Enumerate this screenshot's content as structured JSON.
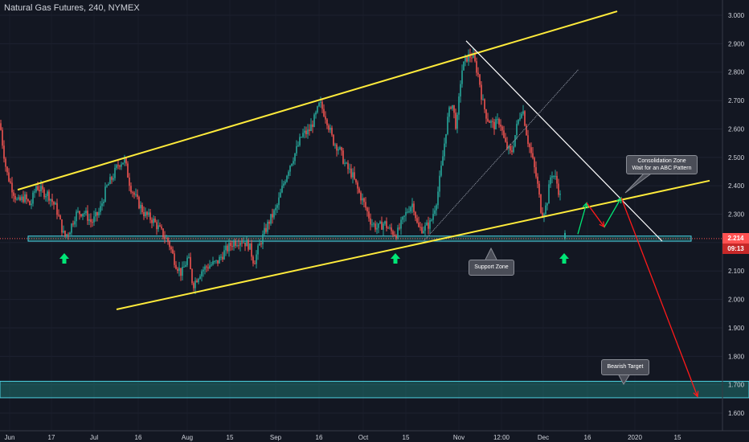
{
  "title": "Natural Gas Futures, 240, NYMEX",
  "price_labels": {
    "last_price": "2.214",
    "countdown": "09:13"
  },
  "callouts": {
    "consolidation_line1": "Consolidation Zone",
    "consolidation_line2": "Wait for an ABC Pattern",
    "support": "Support Zone",
    "target": "Bearish Target"
  },
  "colors": {
    "background": "#131722",
    "trendline": "#ffeb3b",
    "resistance": "#ffffff",
    "zone": "#26a69a",
    "up_arrow": "#00e676",
    "projection_red": "#ff1a1a",
    "last_price": "#ff5252",
    "candle_up": "#26a69a",
    "candle_down": "#ef5350"
  },
  "chart_data": {
    "type": "candlestick",
    "y_axis": {
      "min": 1.55,
      "max": 3.05,
      "ticks": [
        "3.000",
        "2.900",
        "2.800",
        "2.700",
        "2.600",
        "2.500",
        "2.400",
        "2.300",
        "2.200",
        "2.100",
        "2.000",
        "1.900",
        "1.800",
        "1.700",
        "1.600"
      ]
    },
    "x_axis": {
      "ticks": [
        "Jun",
        "17",
        "Jul",
        "16",
        "Aug",
        "15",
        "Sep",
        "16",
        "Oct",
        "15",
        "Nov",
        "12:00",
        "Dec",
        "16",
        "2020",
        "15"
      ]
    },
    "price_path": [
      [
        0,
        2.62
      ],
      [
        3,
        2.55
      ],
      [
        8,
        2.45
      ],
      [
        14,
        2.4
      ],
      [
        22,
        2.34
      ],
      [
        30,
        2.36
      ],
      [
        38,
        2.33
      ],
      [
        45,
        2.4
      ],
      [
        52,
        2.38
      ],
      [
        60,
        2.37
      ],
      [
        70,
        2.32
      ],
      [
        80,
        2.22
      ],
      [
        86,
        2.24
      ],
      [
        94,
        2.3
      ],
      [
        104,
        2.31
      ],
      [
        114,
        2.27
      ],
      [
        124,
        2.31
      ],
      [
        132,
        2.39
      ],
      [
        140,
        2.43
      ],
      [
        148,
        2.48
      ],
      [
        155,
        2.49
      ],
      [
        162,
        2.4
      ],
      [
        170,
        2.35
      ],
      [
        180,
        2.3
      ],
      [
        190,
        2.28
      ],
      [
        200,
        2.24
      ],
      [
        210,
        2.2
      ],
      [
        218,
        2.13
      ],
      [
        226,
        2.09
      ],
      [
        234,
        2.15
      ],
      [
        240,
        2.05
      ],
      [
        250,
        2.1
      ],
      [
        260,
        2.12
      ],
      [
        270,
        2.13
      ],
      [
        280,
        2.17
      ],
      [
        290,
        2.2
      ],
      [
        300,
        2.21
      ],
      [
        310,
        2.19
      ],
      [
        316,
        2.13
      ],
      [
        324,
        2.2
      ],
      [
        334,
        2.27
      ],
      [
        344,
        2.32
      ],
      [
        352,
        2.4
      ],
      [
        360,
        2.47
      ],
      [
        368,
        2.52
      ],
      [
        376,
        2.58
      ],
      [
        384,
        2.59
      ],
      [
        392,
        2.64
      ],
      [
        398,
        2.69
      ],
      [
        406,
        2.64
      ],
      [
        414,
        2.56
      ],
      [
        422,
        2.53
      ],
      [
        430,
        2.47
      ],
      [
        438,
        2.44
      ],
      [
        446,
        2.38
      ],
      [
        454,
        2.33
      ],
      [
        462,
        2.27
      ],
      [
        470,
        2.25
      ],
      [
        478,
        2.27
      ],
      [
        486,
        2.24
      ],
      [
        494,
        2.23
      ],
      [
        500,
        2.27
      ],
      [
        508,
        2.32
      ],
      [
        514,
        2.34
      ],
      [
        520,
        2.25
      ],
      [
        528,
        2.25
      ],
      [
        536,
        2.27
      ],
      [
        544,
        2.36
      ],
      [
        550,
        2.48
      ],
      [
        556,
        2.62
      ],
      [
        562,
        2.7
      ],
      [
        568,
        2.6
      ],
      [
        574,
        2.8
      ],
      [
        580,
        2.85
      ],
      [
        588,
        2.86
      ],
      [
        596,
        2.78
      ],
      [
        600,
        2.7
      ],
      [
        606,
        2.64
      ],
      [
        614,
        2.61
      ],
      [
        622,
        2.63
      ],
      [
        628,
        2.55
      ],
      [
        636,
        2.51
      ],
      [
        644,
        2.62
      ],
      [
        650,
        2.68
      ],
      [
        656,
        2.57
      ],
      [
        662,
        2.5
      ],
      [
        668,
        2.42
      ],
      [
        674,
        2.3
      ],
      [
        680,
        2.33
      ],
      [
        686,
        2.45
      ],
      [
        692,
        2.42
      ],
      [
        698,
        2.35
      ]
    ],
    "last_candle": {
      "x": 703,
      "price": 2.214
    },
    "drawings": {
      "channel_upper": {
        "from": [
          22,
          2.386
        ],
        "to": [
          768,
          3.014
        ]
      },
      "channel_lower": {
        "from": [
          145,
          1.965
        ],
        "to": [
          883,
          2.418
        ]
      },
      "resistance_line": {
        "from": [
          580,
          2.91
        ],
        "to": [
          824,
          2.205
        ]
      },
      "dotted_line": {
        "from": [
          527,
          2.205
        ],
        "to": [
          720,
          2.81
        ]
      },
      "support_zone": {
        "x1": 35,
        "x2": 860,
        "top": 2.223,
        "bottom": 2.205
      },
      "target_zone": {
        "x1": 0,
        "x2": 932,
        "top": 1.712,
        "bottom": 1.654
      },
      "support_arrows_x": [
        80,
        492,
        702
      ],
      "abc_pattern": [
        [
          719,
          2.23
        ],
        [
          730,
          2.34
        ],
        [
          752,
          2.255
        ],
        [
          773,
          2.358
        ],
        [
          868,
          1.658
        ]
      ]
    }
  }
}
